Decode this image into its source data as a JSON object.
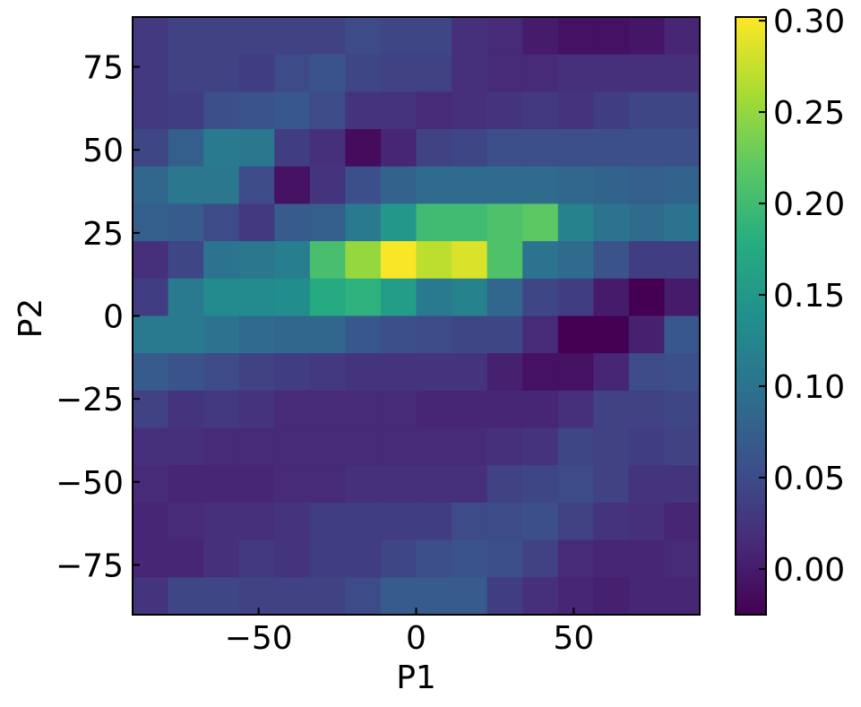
{
  "chart_data": {
    "type": "heatmap",
    "title": "",
    "xlabel": "P1",
    "ylabel": "P2",
    "xlim": [
      -90,
      90
    ],
    "ylim": [
      -90,
      90
    ],
    "x_ticks": [
      -50,
      0,
      50
    ],
    "y_ticks": [
      -75,
      -50,
      -25,
      0,
      25,
      50,
      75
    ],
    "x_tick_labels": [
      "−50",
      "0",
      "50"
    ],
    "y_tick_labels": [
      "−75",
      "−50",
      "−25",
      "0",
      "25",
      "50",
      "75"
    ],
    "colorbar": {
      "colormap": "viridis",
      "range": [
        -0.025,
        0.302
      ],
      "ticks": [
        0.0,
        0.05,
        0.1,
        0.15,
        0.2,
        0.25,
        0.3
      ],
      "tick_labels": [
        "0.00",
        "0.05",
        "0.10",
        "0.15",
        "0.20",
        "0.25",
        "0.30"
      ]
    },
    "grid": false,
    "n_cols": 16,
    "n_rows": 16,
    "rows_order": "top (P2 = +90) to bottom (P2 = -90)",
    "values": [
      [
        0.03,
        0.04,
        0.04,
        0.04,
        0.04,
        0.04,
        0.05,
        0.045,
        0.045,
        0.02,
        0.015,
        0.0,
        -0.01,
        -0.01,
        -0.005,
        0.01
      ],
      [
        0.03,
        0.04,
        0.04,
        0.035,
        0.05,
        0.06,
        0.045,
        0.04,
        0.04,
        0.02,
        0.015,
        0.015,
        0.02,
        0.02,
        0.02,
        0.02
      ],
      [
        0.03,
        0.035,
        0.055,
        0.06,
        0.065,
        0.05,
        0.025,
        0.025,
        0.015,
        0.02,
        0.025,
        0.03,
        0.025,
        0.035,
        0.045,
        0.045
      ],
      [
        0.045,
        0.075,
        0.11,
        0.105,
        0.035,
        0.02,
        -0.015,
        0.01,
        0.04,
        0.045,
        0.055,
        0.055,
        0.055,
        0.055,
        0.055,
        0.055
      ],
      [
        0.085,
        0.105,
        0.105,
        0.05,
        -0.01,
        0.025,
        0.055,
        0.08,
        0.09,
        0.09,
        0.09,
        0.09,
        0.085,
        0.08,
        0.075,
        0.08
      ],
      [
        0.075,
        0.07,
        0.05,
        0.03,
        0.07,
        0.075,
        0.11,
        0.15,
        0.2,
        0.2,
        0.21,
        0.22,
        0.12,
        0.1,
        0.09,
        0.1
      ],
      [
        0.02,
        0.045,
        0.1,
        0.105,
        0.115,
        0.205,
        0.25,
        0.3,
        0.27,
        0.285,
        0.21,
        0.1,
        0.09,
        0.06,
        0.035,
        0.035
      ],
      [
        0.035,
        0.11,
        0.13,
        0.13,
        0.135,
        0.175,
        0.185,
        0.155,
        0.11,
        0.12,
        0.085,
        0.045,
        0.035,
        0.0,
        -0.025,
        0.0
      ],
      [
        0.11,
        0.11,
        0.1,
        0.09,
        0.085,
        0.085,
        0.065,
        0.055,
        0.05,
        0.045,
        0.045,
        0.015,
        -0.025,
        -0.025,
        0.005,
        0.065
      ],
      [
        0.07,
        0.06,
        0.05,
        0.04,
        0.035,
        0.03,
        0.025,
        0.025,
        0.025,
        0.025,
        0.005,
        -0.01,
        -0.01,
        0.01,
        0.05,
        0.055
      ],
      [
        0.04,
        0.025,
        0.03,
        0.025,
        0.015,
        0.015,
        0.015,
        0.015,
        0.01,
        0.01,
        0.01,
        0.01,
        0.02,
        0.04,
        0.04,
        0.045
      ],
      [
        0.02,
        0.02,
        0.015,
        0.015,
        0.015,
        0.015,
        0.015,
        0.015,
        0.015,
        0.015,
        0.02,
        0.025,
        0.045,
        0.04,
        0.035,
        0.04
      ],
      [
        0.015,
        0.01,
        0.01,
        0.01,
        0.015,
        0.015,
        0.02,
        0.02,
        0.02,
        0.02,
        0.04,
        0.045,
        0.05,
        0.04,
        0.025,
        0.025
      ],
      [
        0.01,
        0.015,
        0.02,
        0.02,
        0.025,
        0.035,
        0.035,
        0.035,
        0.035,
        0.05,
        0.05,
        0.055,
        0.04,
        0.025,
        0.02,
        0.01
      ],
      [
        0.01,
        0.01,
        0.02,
        0.03,
        0.025,
        0.035,
        0.035,
        0.045,
        0.055,
        0.06,
        0.055,
        0.04,
        0.015,
        0.01,
        0.01,
        0.015
      ],
      [
        0.025,
        0.045,
        0.045,
        0.04,
        0.04,
        0.04,
        0.05,
        0.07,
        0.07,
        0.07,
        0.035,
        0.02,
        0.01,
        0.005,
        0.01,
        0.01
      ]
    ]
  }
}
